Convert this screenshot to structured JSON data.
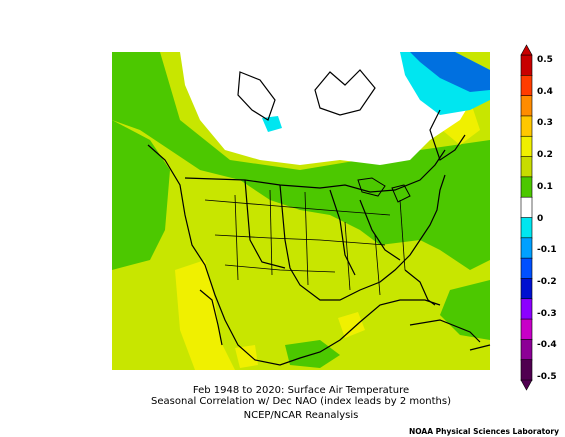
{
  "caption": {
    "line1": "Feb 1948 to 2020: Surface Air Temperature",
    "line2": "Seasonal Correlation w/ Dec NAO (index leads by 2 months)",
    "line3": "NCEP/NCAR Reanalysis"
  },
  "credit": "NOAA Physical Sciences Laboratory",
  "colorbar": {
    "levels": [
      "0.5",
      "0.4",
      "0.3",
      "0.2",
      "0.1",
      "0",
      "-0.1",
      "-0.2",
      "-0.3",
      "-0.4",
      "-0.5"
    ],
    "colors": [
      "#c80000",
      "#ff3c00",
      "#ff8c00",
      "#ffc800",
      "#f0f000",
      "#c8dc00",
      "#4cc800",
      "#ffffff",
      "#00e6f0",
      "#00a0ff",
      "#0050ff",
      "#0010d0",
      "#8c00ff",
      "#c800c8",
      "#8c0096",
      "#500050"
    ]
  },
  "map": {
    "region": "North America",
    "field_colors": {
      "positive_high": "#f0f000",
      "positive_mid": "#c8e600",
      "positive_low": "#4cc800",
      "near_zero": "#ffffff",
      "negative_low": "#00e6f0",
      "negative_mid": "#0070e0"
    }
  }
}
